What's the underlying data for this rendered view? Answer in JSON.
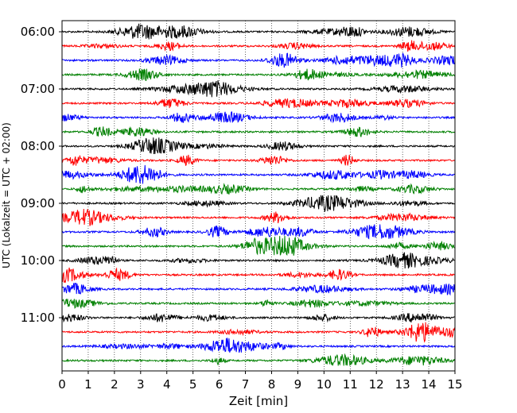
{
  "chart_data": {
    "type": "line",
    "title": "",
    "xlabel": "Zeit  [min]",
    "ylabel": "UTC (Lokalzeit = UTC + 02:00)",
    "xlim": [
      0,
      15
    ],
    "x_ticks": [
      0,
      1,
      2,
      3,
      4,
      5,
      6,
      7,
      8,
      9,
      10,
      11,
      12,
      13,
      14,
      15
    ],
    "y_tick_labels": [
      "06:00",
      "07:00",
      "08:00",
      "09:00",
      "10:00",
      "11:00"
    ],
    "grid": "vertical dotted lines at each minute",
    "trace_colors": [
      "#000000",
      "#ff0000",
      "#0000ff",
      "#008000"
    ],
    "trace_start_times_utc": [
      "06:00",
      "06:15",
      "06:30",
      "06:45",
      "07:00",
      "07:15",
      "07:30",
      "07:45",
      "08:00",
      "08:15",
      "08:30",
      "08:45",
      "09:00",
      "09:15",
      "09:30",
      "09:45",
      "10:00",
      "10:15",
      "10:30",
      "10:45",
      "11:00",
      "11:15",
      "11:30",
      "11:45"
    ],
    "traces_description": "Helicorder-style seismograph: 24 traces of 15 minutes each, cycling black, red, blue, green"
  }
}
